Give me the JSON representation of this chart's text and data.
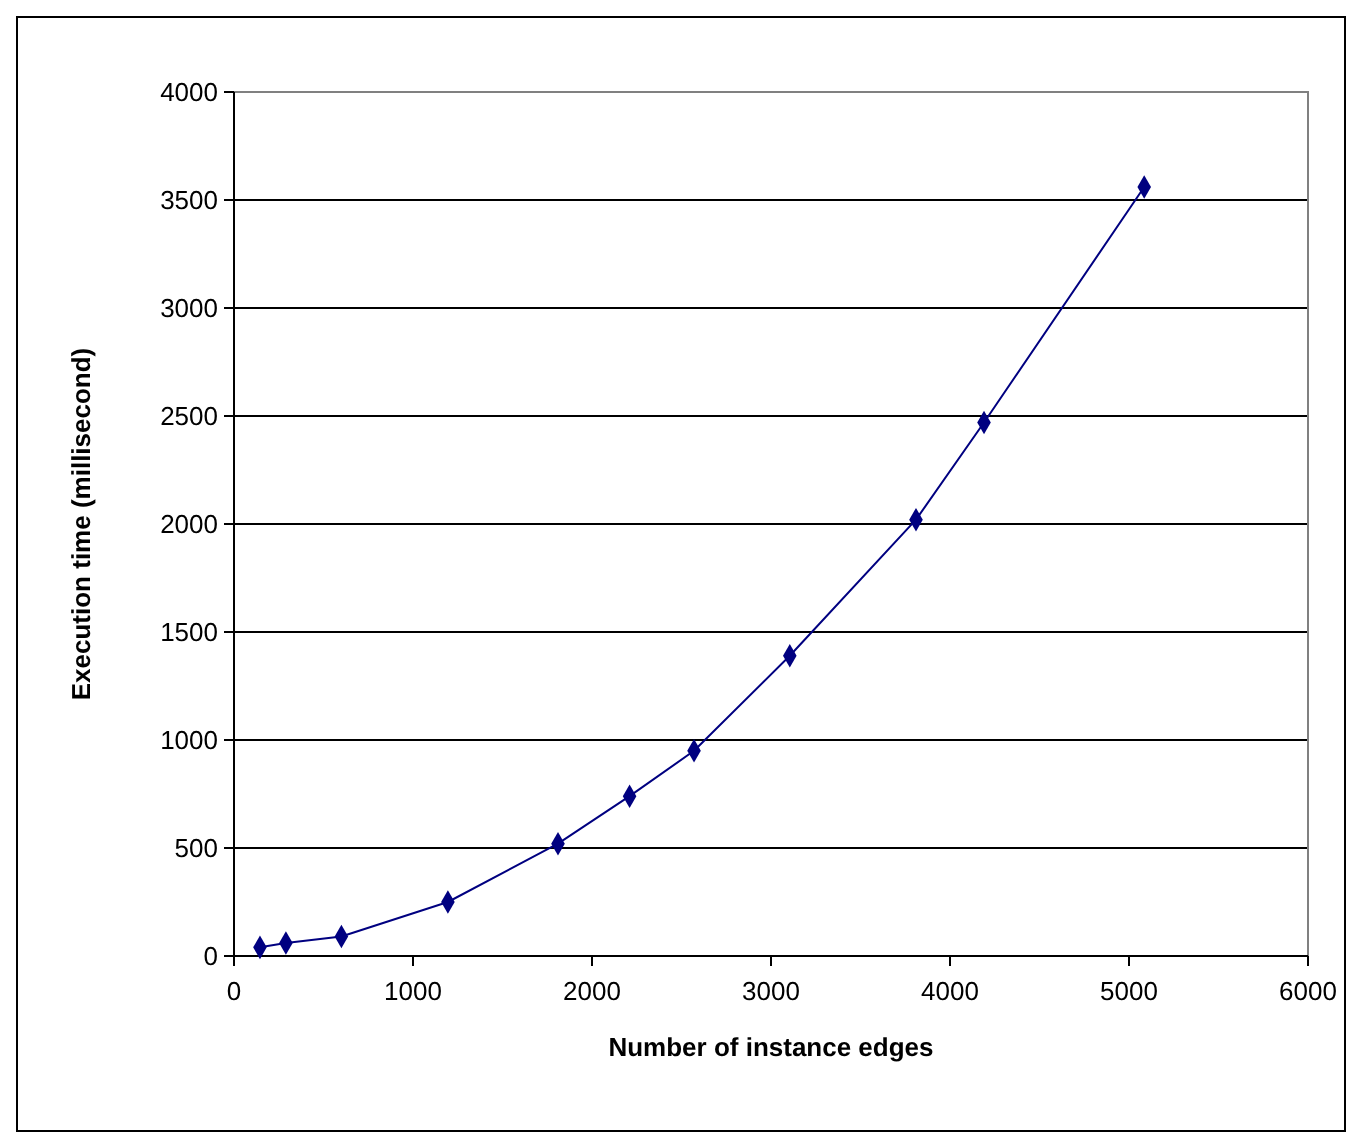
{
  "chart_data": {
    "type": "line",
    "xlabel": "Number of instance edges",
    "ylabel": "Execution time (millisecond)",
    "x": [
      145,
      290,
      600,
      1195,
      1810,
      2210,
      2570,
      3105,
      3810,
      4190,
      5085
    ],
    "series": [
      {
        "color": "#000080",
        "values": [
          40,
          60,
          90,
          250,
          520,
          740,
          950,
          1390,
          2020,
          2470,
          3560
        ]
      }
    ],
    "xlim": [
      0,
      6000
    ],
    "xticks": [
      0,
      1000,
      2000,
      3000,
      4000,
      5000,
      6000
    ],
    "ylim": [
      0,
      4000
    ],
    "yticks": [
      0,
      500,
      1000,
      1500,
      2000,
      2500,
      3000,
      3500,
      4000
    ],
    "grid": "y",
    "marker": "diamond",
    "line_style": "solid"
  }
}
